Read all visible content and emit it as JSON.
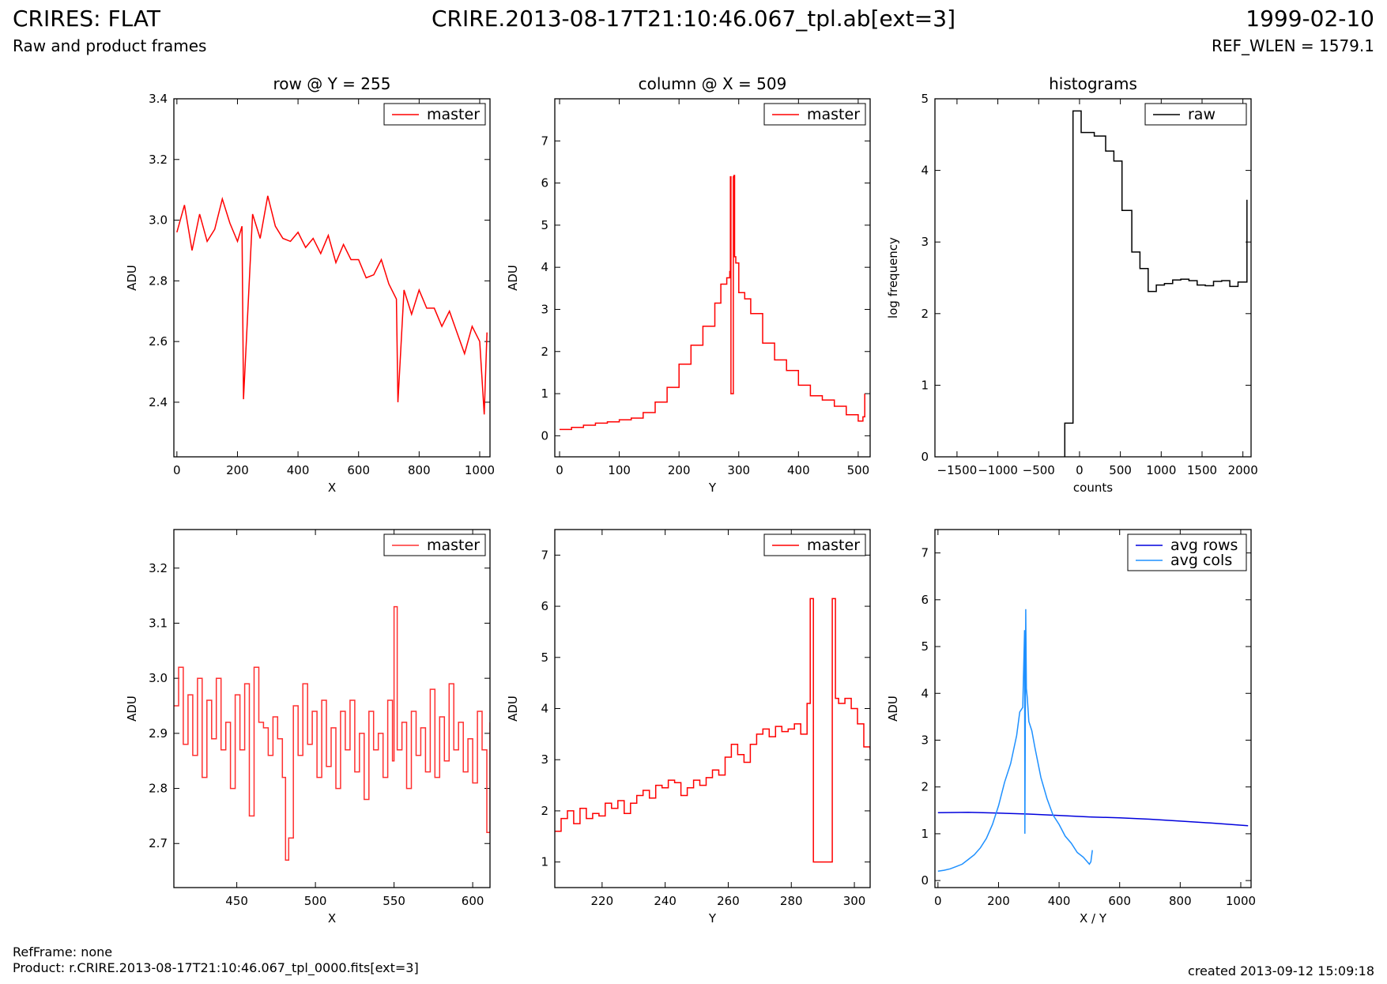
{
  "header": {
    "title_left": "CRIRES: FLAT",
    "subtitle_left": "Raw and product frames",
    "title_center": "CRIRE.2013-08-17T21:10:46.067_tpl.ab[ext=3]",
    "title_right": "1999-02-10",
    "subtitle_right": "REF_WLEN = 1579.1"
  },
  "footer": {
    "refframe": "RefFrame: none",
    "product": "Product: r.CRIRE.2013-08-17T21:10:46.067_tpl_0000.fits[ext=3]",
    "created": "created 2013-09-12 15:09:18"
  },
  "colors": {
    "red": "#ff0000",
    "red_light": "#ff3030",
    "blue": "#0000dd",
    "skyblue": "#1e90ff",
    "black": "#000000"
  },
  "chart_data": [
    {
      "id": "row",
      "type": "line",
      "title": "row @ Y = 255",
      "xlabel": "X",
      "ylabel": "ADU",
      "xlim": [
        -10,
        1034
      ],
      "ylim": [
        2.22,
        3.4
      ],
      "xticks": [
        0,
        200,
        400,
        600,
        800,
        1000
      ],
      "yticks": [
        2.4,
        2.6,
        2.8,
        3.0,
        3.2,
        3.4
      ],
      "ytick_labels": [
        "2.4",
        "2.6",
        "2.8",
        "3.0",
        "3.2",
        "3.4"
      ],
      "legend": "top-right",
      "series": [
        {
          "name": "master",
          "color": "#ff0000",
          "step": false,
          "x": [
            0,
            25,
            50,
            75,
            100,
            125,
            150,
            175,
            200,
            215,
            220,
            250,
            275,
            300,
            325,
            350,
            375,
            400,
            425,
            450,
            475,
            500,
            525,
            550,
            575,
            600,
            625,
            650,
            675,
            700,
            725,
            730,
            750,
            775,
            800,
            825,
            850,
            875,
            900,
            925,
            950,
            975,
            1000,
            1015,
            1024
          ],
          "y": [
            2.96,
            3.05,
            2.9,
            3.02,
            2.93,
            2.97,
            3.07,
            2.99,
            2.93,
            2.98,
            2.41,
            3.02,
            2.94,
            3.08,
            2.98,
            2.94,
            2.93,
            2.96,
            2.91,
            2.94,
            2.89,
            2.95,
            2.86,
            2.92,
            2.87,
            2.87,
            2.81,
            2.82,
            2.87,
            2.79,
            2.74,
            2.4,
            2.77,
            2.69,
            2.77,
            2.71,
            2.71,
            2.65,
            2.7,
            2.63,
            2.56,
            2.65,
            2.6,
            2.36,
            2.63
          ]
        }
      ]
    },
    {
      "id": "column",
      "type": "line",
      "title": "column @ X = 509",
      "xlabel": "Y",
      "ylabel": "ADU",
      "xlim": [
        -8,
        520
      ],
      "ylim": [
        -0.5,
        8
      ],
      "xticks": [
        0,
        100,
        200,
        300,
        400,
        500
      ],
      "yticks": [
        0,
        1,
        2,
        3,
        4,
        5,
        6,
        7
      ],
      "legend": "top-right",
      "series": [
        {
          "name": "master",
          "color": "#ff0000",
          "step": true,
          "x": [
            0,
            20,
            40,
            60,
            80,
            100,
            120,
            140,
            160,
            180,
            200,
            220,
            240,
            260,
            270,
            280,
            285,
            286,
            287,
            290,
            291,
            292,
            293,
            295,
            300,
            310,
            320,
            340,
            360,
            380,
            400,
            420,
            440,
            460,
            480,
            500,
            508,
            511
          ],
          "y": [
            0.15,
            0.2,
            0.25,
            0.3,
            0.33,
            0.38,
            0.42,
            0.55,
            0.8,
            1.15,
            1.7,
            2.15,
            2.6,
            3.15,
            3.6,
            3.75,
            3.9,
            6.15,
            1.0,
            1.0,
            6.15,
            6.18,
            4.25,
            4.1,
            3.4,
            3.25,
            2.9,
            2.2,
            1.8,
            1.55,
            1.2,
            0.95,
            0.85,
            0.7,
            0.5,
            0.35,
            0.45,
            1.0
          ]
        }
      ]
    },
    {
      "id": "histograms",
      "type": "line",
      "title": "histograms",
      "xlabel": "counts",
      "ylabel": "log frequency",
      "xlim": [
        -1770,
        2100
      ],
      "ylim": [
        0,
        5
      ],
      "xticks": [
        -1500,
        -1000,
        -500,
        0,
        500,
        1000,
        1500,
        2000
      ],
      "xtick_labels": [
        "−1500",
        "−1000",
        "−500",
        "0",
        "500",
        "1000",
        "1500",
        "2000"
      ],
      "yticks": [
        0,
        1,
        2,
        3,
        4,
        5
      ],
      "legend": "top-right",
      "series": [
        {
          "name": "raw",
          "color": "#000000",
          "step": true,
          "x": [
            -180,
            -180,
            -80,
            20,
            180,
            320,
            420,
            520,
            640,
            740,
            840,
            940,
            1040,
            1140,
            1240,
            1340,
            1440,
            1540,
            1640,
            1740,
            1840,
            1940,
            2050
          ],
          "y": [
            0,
            0.47,
            4.83,
            4.53,
            4.48,
            4.27,
            4.13,
            3.44,
            2.86,
            2.63,
            2.31,
            2.4,
            2.42,
            2.47,
            2.48,
            2.46,
            2.4,
            2.39,
            2.45,
            2.46,
            2.38,
            2.44,
            3.59
          ]
        }
      ]
    },
    {
      "id": "row-zoom",
      "type": "line",
      "title": "",
      "xlabel": "X",
      "ylabel": "ADU",
      "xlim": [
        410,
        611
      ],
      "ylim": [
        2.62,
        3.27
      ],
      "xticks": [
        450,
        500,
        550,
        600
      ],
      "yticks": [
        2.7,
        2.8,
        2.9,
        3.0,
        3.1,
        3.2
      ],
      "ytick_labels": [
        "2.7",
        "2.8",
        "2.9",
        "3.0",
        "3.1",
        "3.2"
      ],
      "legend": "top-right",
      "series": [
        {
          "name": "master",
          "color": "#ff3030",
          "step": true,
          "x": [
            410,
            413,
            416,
            419,
            422,
            425,
            428,
            431,
            434,
            437,
            440,
            443,
            446,
            449,
            452,
            455,
            458,
            461,
            464,
            467,
            470,
            473,
            476,
            479,
            481,
            483,
            486,
            489,
            492,
            495,
            498,
            501,
            504,
            507,
            510,
            513,
            516,
            519,
            522,
            525,
            528,
            531,
            534,
            537,
            540,
            543,
            546,
            549,
            550,
            552,
            555,
            558,
            561,
            564,
            567,
            570,
            573,
            576,
            579,
            582,
            585,
            588,
            591,
            594,
            597,
            600,
            603,
            606,
            609,
            611
          ],
          "y": [
            2.95,
            3.02,
            2.88,
            2.97,
            2.86,
            3.0,
            2.82,
            2.96,
            2.89,
            3.0,
            2.87,
            2.92,
            2.8,
            2.97,
            2.87,
            2.99,
            2.75,
            3.02,
            2.92,
            2.91,
            2.86,
            2.93,
            2.89,
            2.82,
            2.67,
            2.71,
            2.95,
            2.86,
            2.99,
            2.88,
            2.94,
            2.82,
            2.96,
            2.84,
            2.91,
            2.8,
            2.94,
            2.87,
            2.96,
            2.83,
            2.9,
            2.78,
            2.94,
            2.87,
            2.9,
            2.82,
            2.96,
            2.85,
            3.13,
            2.87,
            2.92,
            2.8,
            2.94,
            2.86,
            2.91,
            2.83,
            2.98,
            2.82,
            2.93,
            2.85,
            2.99,
            2.87,
            2.92,
            2.83,
            2.89,
            2.81,
            2.94,
            2.87,
            2.72,
            2.92
          ]
        }
      ]
    },
    {
      "id": "column-zoom",
      "type": "line",
      "title": "",
      "xlabel": "Y",
      "ylabel": "ADU",
      "xlim": [
        205,
        305
      ],
      "ylim": [
        0.5,
        7.5
      ],
      "xticks": [
        220,
        240,
        260,
        280,
        300
      ],
      "yticks": [
        1,
        2,
        3,
        4,
        5,
        6,
        7
      ],
      "legend": "top-right",
      "series": [
        {
          "name": "master",
          "color": "#ff0000",
          "step": true,
          "x": [
            205,
            207,
            209,
            211,
            213,
            215,
            217,
            219,
            221,
            223,
            225,
            227,
            229,
            231,
            233,
            235,
            237,
            239,
            241,
            243,
            245,
            247,
            249,
            251,
            253,
            255,
            257,
            259,
            261,
            263,
            265,
            267,
            269,
            271,
            273,
            275,
            277,
            279,
            281,
            283,
            285,
            286,
            287,
            293,
            294,
            295,
            297,
            299,
            301,
            303,
            305
          ],
          "y": [
            1.6,
            1.85,
            2.0,
            1.75,
            2.05,
            1.85,
            1.95,
            1.9,
            2.15,
            2.05,
            2.2,
            1.95,
            2.15,
            2.3,
            2.4,
            2.25,
            2.5,
            2.45,
            2.6,
            2.55,
            2.3,
            2.45,
            2.6,
            2.5,
            2.65,
            2.8,
            2.7,
            3.05,
            3.3,
            3.1,
            2.95,
            3.3,
            3.5,
            3.6,
            3.45,
            3.65,
            3.55,
            3.6,
            3.7,
            3.5,
            4.1,
            6.15,
            1.0,
            6.15,
            4.2,
            4.1,
            4.2,
            4.0,
            3.7,
            3.25,
            3.2
          ]
        }
      ]
    },
    {
      "id": "averages",
      "type": "line",
      "title": "",
      "xlabel": "X / Y",
      "ylabel": "ADU",
      "xlim": [
        -10,
        1034
      ],
      "ylim": [
        -0.15,
        7.5
      ],
      "xticks": [
        0,
        200,
        400,
        600,
        800,
        1000
      ],
      "yticks": [
        0,
        1,
        2,
        3,
        4,
        5,
        6,
        7
      ],
      "legend": "top-right",
      "series": [
        {
          "name": "avg rows",
          "color": "#0000dd",
          "step": false,
          "x": [
            0,
            100,
            200,
            300,
            400,
            500,
            600,
            700,
            800,
            900,
            1024
          ],
          "y": [
            1.45,
            1.46,
            1.44,
            1.42,
            1.39,
            1.36,
            1.34,
            1.31,
            1.27,
            1.23,
            1.17
          ]
        },
        {
          "name": "avg cols",
          "color": "#1e90ff",
          "step": false,
          "x": [
            0,
            20,
            40,
            60,
            80,
            100,
            120,
            140,
            160,
            180,
            200,
            220,
            240,
            260,
            270,
            280,
            286,
            287,
            290,
            292,
            295,
            300,
            310,
            320,
            340,
            360,
            380,
            400,
            420,
            440,
            460,
            480,
            500,
            505,
            510
          ],
          "y": [
            0.2,
            0.22,
            0.25,
            0.3,
            0.35,
            0.45,
            0.55,
            0.7,
            0.9,
            1.2,
            1.6,
            2.1,
            2.5,
            3.1,
            3.6,
            3.7,
            5.35,
            1.0,
            5.8,
            4.1,
            3.9,
            3.4,
            3.2,
            2.85,
            2.2,
            1.75,
            1.4,
            1.2,
            0.95,
            0.8,
            0.6,
            0.5,
            0.35,
            0.4,
            0.65
          ]
        }
      ]
    }
  ]
}
